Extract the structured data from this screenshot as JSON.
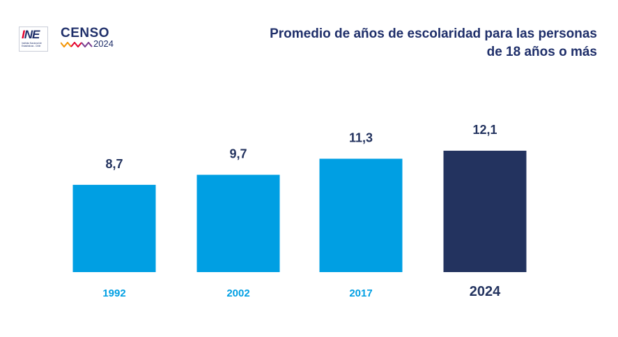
{
  "logos": {
    "ine_word": "INE",
    "ine_subtitle": "Instituto Nacional de Estadísticas - Chile",
    "censo_word": "CENSO",
    "censo_year": "2024"
  },
  "chart_data": {
    "type": "bar",
    "title": "Promedio de años de escolaridad para las personas de 18 años o más",
    "categories": [
      "1992",
      "2002",
      "2017",
      "2024"
    ],
    "values": [
      8.7,
      9.7,
      11.3,
      12.1
    ],
    "value_labels": [
      "8,7",
      "9,7",
      "11,3",
      "12,1"
    ],
    "ylim": [
      0,
      14
    ],
    "grid": false,
    "colors": {
      "bar": "#009fe3",
      "highlight_bar": "#23335f",
      "label": "#23335f",
      "category": "#009fe3",
      "highlight_category": "#23335f"
    },
    "highlight_index": 3
  }
}
